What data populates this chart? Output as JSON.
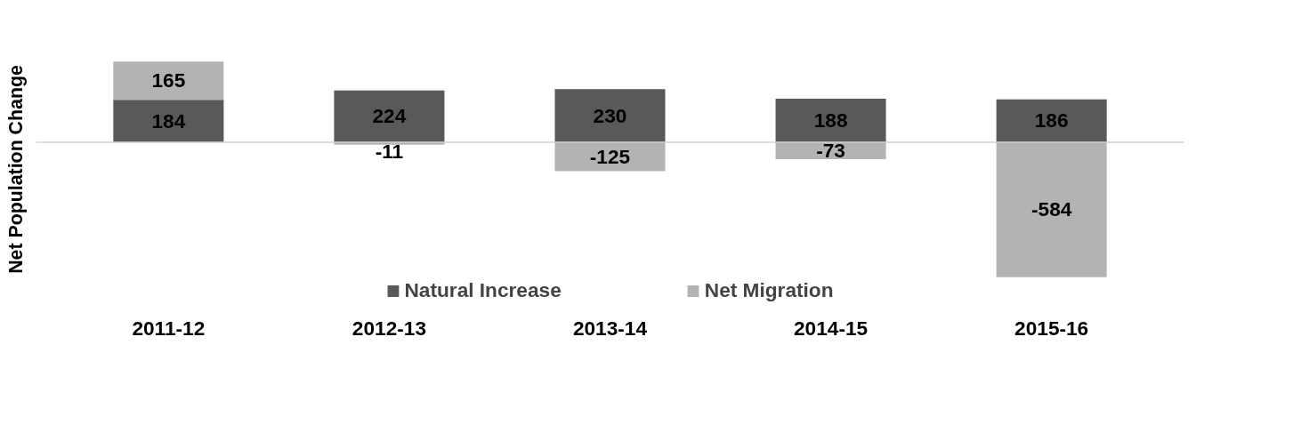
{
  "chart_data": {
    "type": "bar",
    "stacked": true,
    "ylabel": "Net Population Change",
    "categories": [
      "2011-12",
      "2012-13",
      "2013-14",
      "2014-15",
      "2015-16"
    ],
    "series": [
      {
        "name": "Natural Increase",
        "color": "#595959",
        "values": [
          184,
          224,
          230,
          188,
          186
        ]
      },
      {
        "name": "Net Migration",
        "color": "#b3b3b3",
        "values": [
          165,
          -11,
          -125,
          -73,
          -584
        ]
      }
    ],
    "tick_labels": "x",
    "data_labels": true,
    "legend": "bottom",
    "grid": false
  }
}
